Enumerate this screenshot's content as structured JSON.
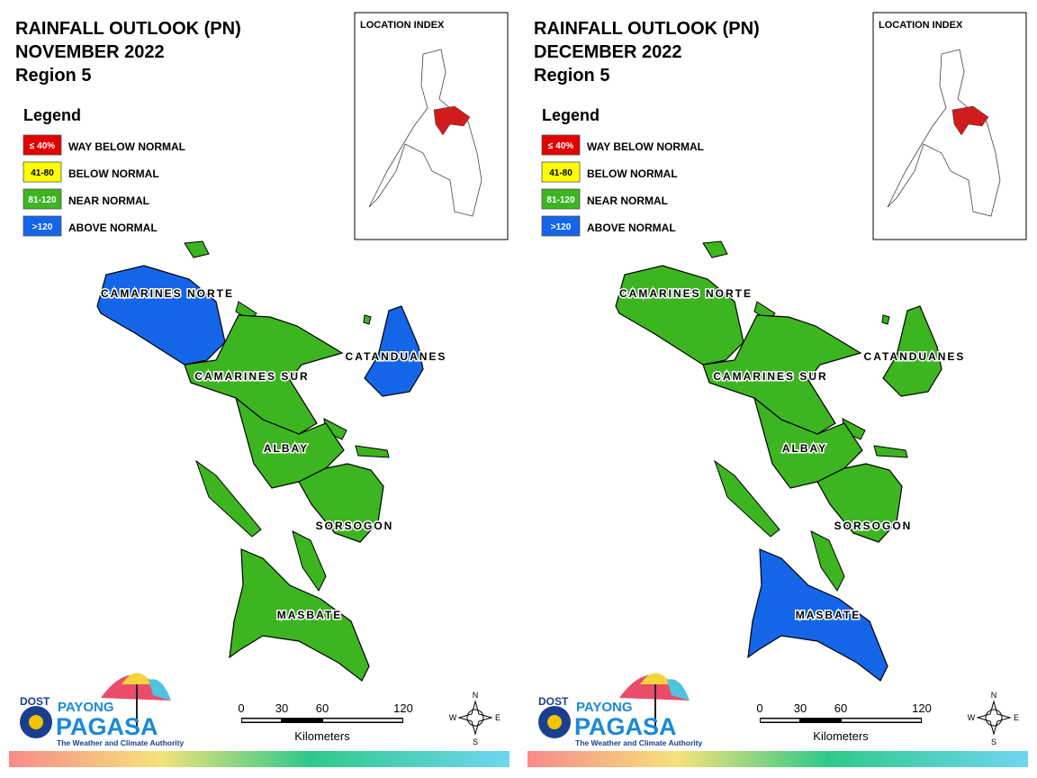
{
  "panels": [
    {
      "title": [
        "RAINFALL OUTLOOK (PN)",
        "NOVEMBER 2022",
        "Region 5"
      ],
      "legend": {
        "title": "Legend",
        "items": [
          {
            "range": "≤ 40%",
            "label": "WAY BELOW NORMAL",
            "color": "#e00000"
          },
          {
            "range": "41-80",
            "label": "BELOW NORMAL",
            "color": "#ffff00"
          },
          {
            "range": "81-120",
            "label": "NEAR NORMAL",
            "color": "#3cb521"
          },
          {
            "range": ">120",
            "label": "ABOVE NORMAL",
            "color": "#1565e8"
          }
        ]
      },
      "location_index": "LOCATION INDEX",
      "provinces": [
        {
          "name": "CAMARINES NORTE",
          "color": "#1565e8"
        },
        {
          "name": "CAMARINES SUR",
          "color": "#3cb521"
        },
        {
          "name": "CATANDUANES",
          "color": "#1565e8"
        },
        {
          "name": "ALBAY",
          "color": "#3cb521"
        },
        {
          "name": "SORSOGON",
          "color": "#3cb521"
        },
        {
          "name": "MASBATE",
          "color": "#3cb521"
        }
      ],
      "scale": {
        "ticks": [
          0,
          30,
          60,
          120
        ],
        "unit": "Kilometers"
      },
      "compass": {
        "n": "N",
        "e": "E",
        "s": "S",
        "w": "W"
      },
      "logo": {
        "dost": "DOST",
        "payong": "PAYONG",
        "pagasa": "PAGASA",
        "tagline": "The Weather and Climate Authority"
      }
    },
    {
      "title": [
        "RAINFALL OUTLOOK (PN)",
        "DECEMBER 2022",
        "Region 5"
      ],
      "legend": {
        "title": "Legend",
        "items": [
          {
            "range": "≤ 40%",
            "label": "WAY BELOW NORMAL",
            "color": "#e00000"
          },
          {
            "range": "41-80",
            "label": "BELOW NORMAL",
            "color": "#ffff00"
          },
          {
            "range": "81-120",
            "label": "NEAR NORMAL",
            "color": "#3cb521"
          },
          {
            "range": ">120",
            "label": "ABOVE NORMAL",
            "color": "#1565e8"
          }
        ]
      },
      "location_index": "LOCATION INDEX",
      "provinces": [
        {
          "name": "CAMARINES NORTE",
          "color": "#3cb521"
        },
        {
          "name": "CAMARINES SUR",
          "color": "#3cb521"
        },
        {
          "name": "CATANDUANES",
          "color": "#3cb521"
        },
        {
          "name": "ALBAY",
          "color": "#3cb521"
        },
        {
          "name": "SORSOGON",
          "color": "#3cb521"
        },
        {
          "name": "MASBATE",
          "color": "#1565e8"
        }
      ],
      "scale": {
        "ticks": [
          0,
          30,
          60,
          120
        ],
        "unit": "Kilometers"
      },
      "compass": {
        "n": "N",
        "e": "E",
        "s": "S",
        "w": "W"
      },
      "logo": {
        "dost": "DOST",
        "payong": "PAYONG",
        "pagasa": "PAGASA",
        "tagline": "The Weather and Climate Authority"
      }
    }
  ]
}
